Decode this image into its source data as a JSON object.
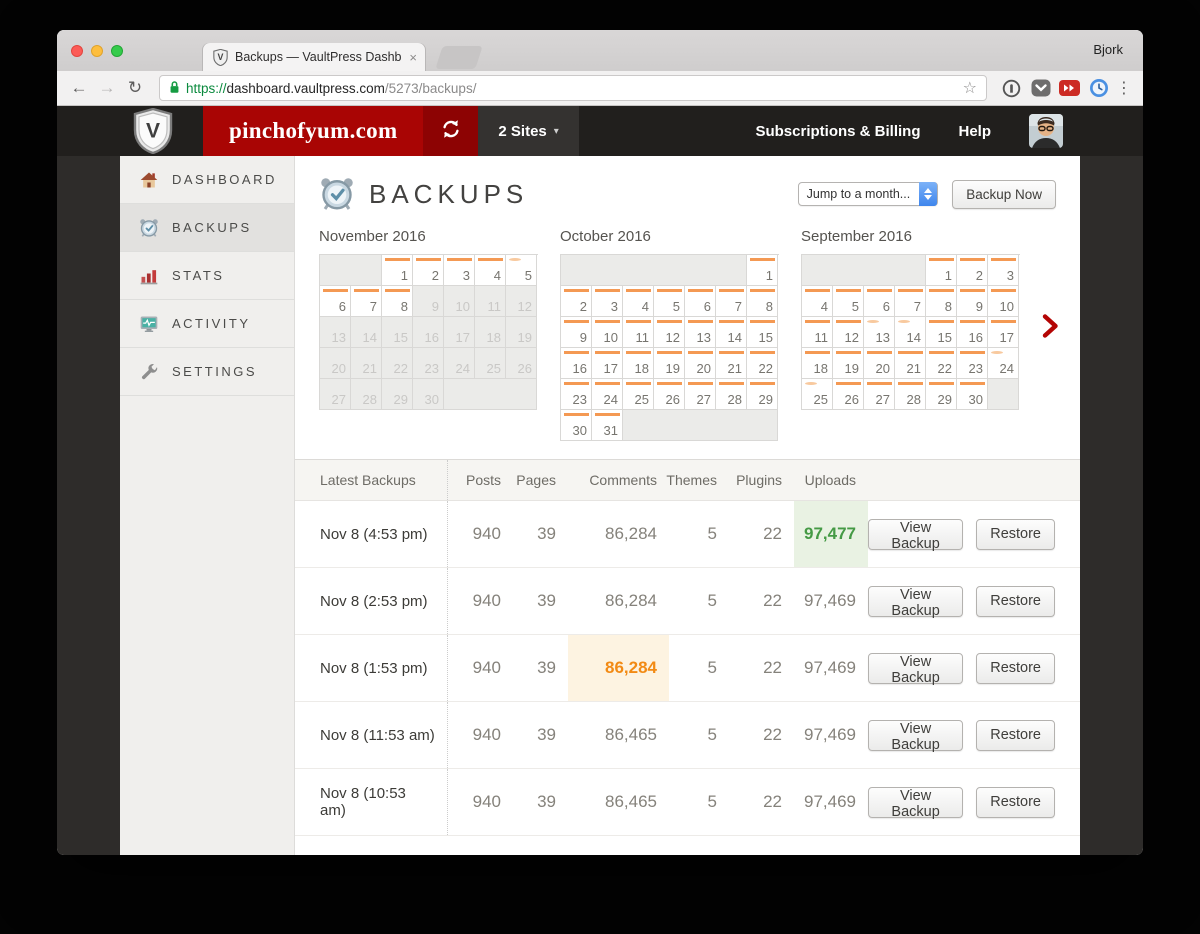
{
  "browser": {
    "tab_title": "Backups — VaultPress Dashbo",
    "tab_close": "×",
    "profile_name": "Bjork",
    "back": "←",
    "forward": "→",
    "reload": "↻",
    "url": {
      "scheme": "https://",
      "host": "dashboard.vaultpress.com",
      "path": "/5273/backups/"
    },
    "bookmark_star": "☆",
    "menu_dots": "⋮"
  },
  "vp_header": {
    "site_name": "pinchofyum.com",
    "sites_label": "2 Sites",
    "sites_caret": "▾",
    "nav_billing": "Subscriptions & Billing",
    "nav_help": "Help"
  },
  "sidebar": {
    "items": [
      {
        "label": "DASHBOARD",
        "icon": "house-icon",
        "active": false
      },
      {
        "label": "BACKUPS",
        "icon": "alarm-clock-icon",
        "active": true
      },
      {
        "label": "STATS",
        "icon": "bar-chart-icon",
        "active": false
      },
      {
        "label": "ACTIVITY",
        "icon": "monitor-icon",
        "active": false
      },
      {
        "label": "SETTINGS",
        "icon": "wrench-icon",
        "active": false
      }
    ]
  },
  "main": {
    "title": "BACKUPS",
    "month_select_label": "Jump to a month...",
    "backup_now_label": "Backup Now"
  },
  "calendars": [
    {
      "title": "November 2016",
      "lead": 2,
      "trail": 3,
      "day_count": 30,
      "backup_days": [
        1,
        2,
        3,
        4,
        5,
        6,
        7,
        8
      ],
      "light_days": [
        5
      ]
    },
    {
      "title": "October 2016",
      "lead": 6,
      "trail": 5,
      "day_count": 31,
      "backup_days": [
        1,
        2,
        3,
        4,
        5,
        6,
        7,
        8,
        9,
        10,
        11,
        12,
        13,
        14,
        15,
        16,
        17,
        18,
        19,
        20,
        21,
        22,
        23,
        24,
        25,
        26,
        27,
        28,
        29,
        30,
        31
      ],
      "light_days": []
    },
    {
      "title": "September 2016",
      "lead": 4,
      "trail": 1,
      "day_count": 30,
      "backup_days": [
        1,
        2,
        3,
        4,
        5,
        6,
        7,
        8,
        9,
        10,
        11,
        12,
        13,
        14,
        15,
        16,
        17,
        18,
        19,
        20,
        21,
        22,
        23,
        24,
        25,
        26,
        27,
        28,
        29,
        30
      ],
      "light_days": [
        13,
        14,
        24,
        25
      ]
    }
  ],
  "table": {
    "headers": {
      "date": "Latest Backups",
      "posts": "Posts",
      "pages": "Pages",
      "comments": "Comments",
      "themes": "Themes",
      "plugins": "Plugins",
      "uploads": "Uploads"
    },
    "actions": {
      "view": "View Backup",
      "restore": "Restore"
    },
    "rows": [
      {
        "date": "Nov 8 (4:53 pm)",
        "posts": "940",
        "pages": "39",
        "comments": "86,284",
        "themes": "5",
        "plugins": "22",
        "uploads": "97,477",
        "highlight": {
          "col": "uploads",
          "type": "green"
        }
      },
      {
        "date": "Nov 8 (2:53 pm)",
        "posts": "940",
        "pages": "39",
        "comments": "86,284",
        "themes": "5",
        "plugins": "22",
        "uploads": "97,469",
        "highlight": null
      },
      {
        "date": "Nov 8 (1:53 pm)",
        "posts": "940",
        "pages": "39",
        "comments": "86,284",
        "themes": "5",
        "plugins": "22",
        "uploads": "97,469",
        "highlight": {
          "col": "comments",
          "type": "orange"
        }
      },
      {
        "date": "Nov 8 (11:53 am)",
        "posts": "940",
        "pages": "39",
        "comments": "86,465",
        "themes": "5",
        "plugins": "22",
        "uploads": "97,469",
        "highlight": null
      },
      {
        "date": "Nov 8 (10:53 am)",
        "posts": "940",
        "pages": "39",
        "comments": "86,465",
        "themes": "5",
        "plugins": "22",
        "uploads": "97,469",
        "highlight": null
      }
    ]
  },
  "colors": {
    "brand_red": "#a90504",
    "refresh_red": "#8d0303",
    "bar_orange": "#f49953",
    "bar_orange_light": "#f8c99e",
    "green_text": "#459a45",
    "green_bg": "#e9f2e3",
    "orange_text": "#f28a14",
    "orange_bg": "#fdf3e1"
  }
}
